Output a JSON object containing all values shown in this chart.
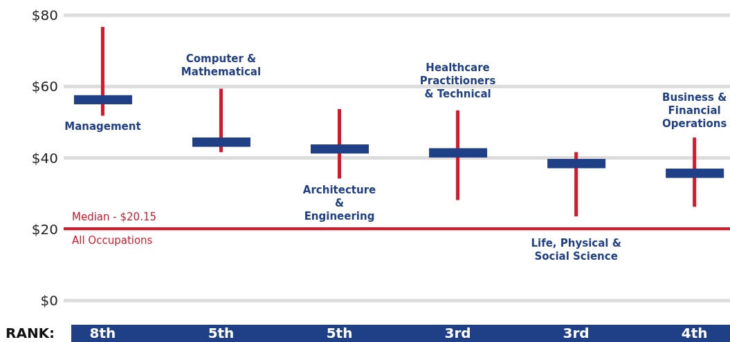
{
  "chart_data": {
    "type": "bar",
    "categories": [
      "Management",
      "Computer & Mathematical",
      "Architecture & Engineering",
      "Healthcare Practitioners & Technical",
      "Life, Physical & Social Science",
      "Business & Financial Operations"
    ],
    "series": [
      {
        "color": "#d7182a",
        "base": [
          51.8,
          41.6,
          34.2,
          28.2,
          23.6,
          26.3
        ],
        "values": [
          24.9,
          17.8,
          19.5,
          25.1,
          18,
          19.4
        ]
      },
      {
        "color": "#1f3f87",
        "base": [
          55.0,
          43.1,
          41.2,
          40.1,
          37.1,
          34.4
        ],
        "values": [
          2.6,
          2.6,
          2.6,
          2.6,
          2.6,
          2.6
        ]
      }
    ],
    "ylim": [
      0,
      80
    ],
    "yticks": [
      {
        "value": 0,
        "label": "$0"
      },
      {
        "value": 20,
        "label": "$20"
      },
      {
        "value": 40,
        "label": "$40"
      },
      {
        "value": 60,
        "label": "$60"
      },
      {
        "value": 80,
        "label": "$80"
      }
    ],
    "grid": "y",
    "tick_labels": "y",
    "ref_lines": [
      {
        "axis": "y",
        "value": 20.15,
        "label": "Median - $20.15",
        "color": "#d7182a"
      }
    ],
    "annotations": [
      {
        "text": "All Occupations",
        "y": 20.15
      },
      "RANK:",
      "8th",
      "5th",
      "5th",
      "3rd",
      "3rd",
      "4th"
    ]
  }
}
